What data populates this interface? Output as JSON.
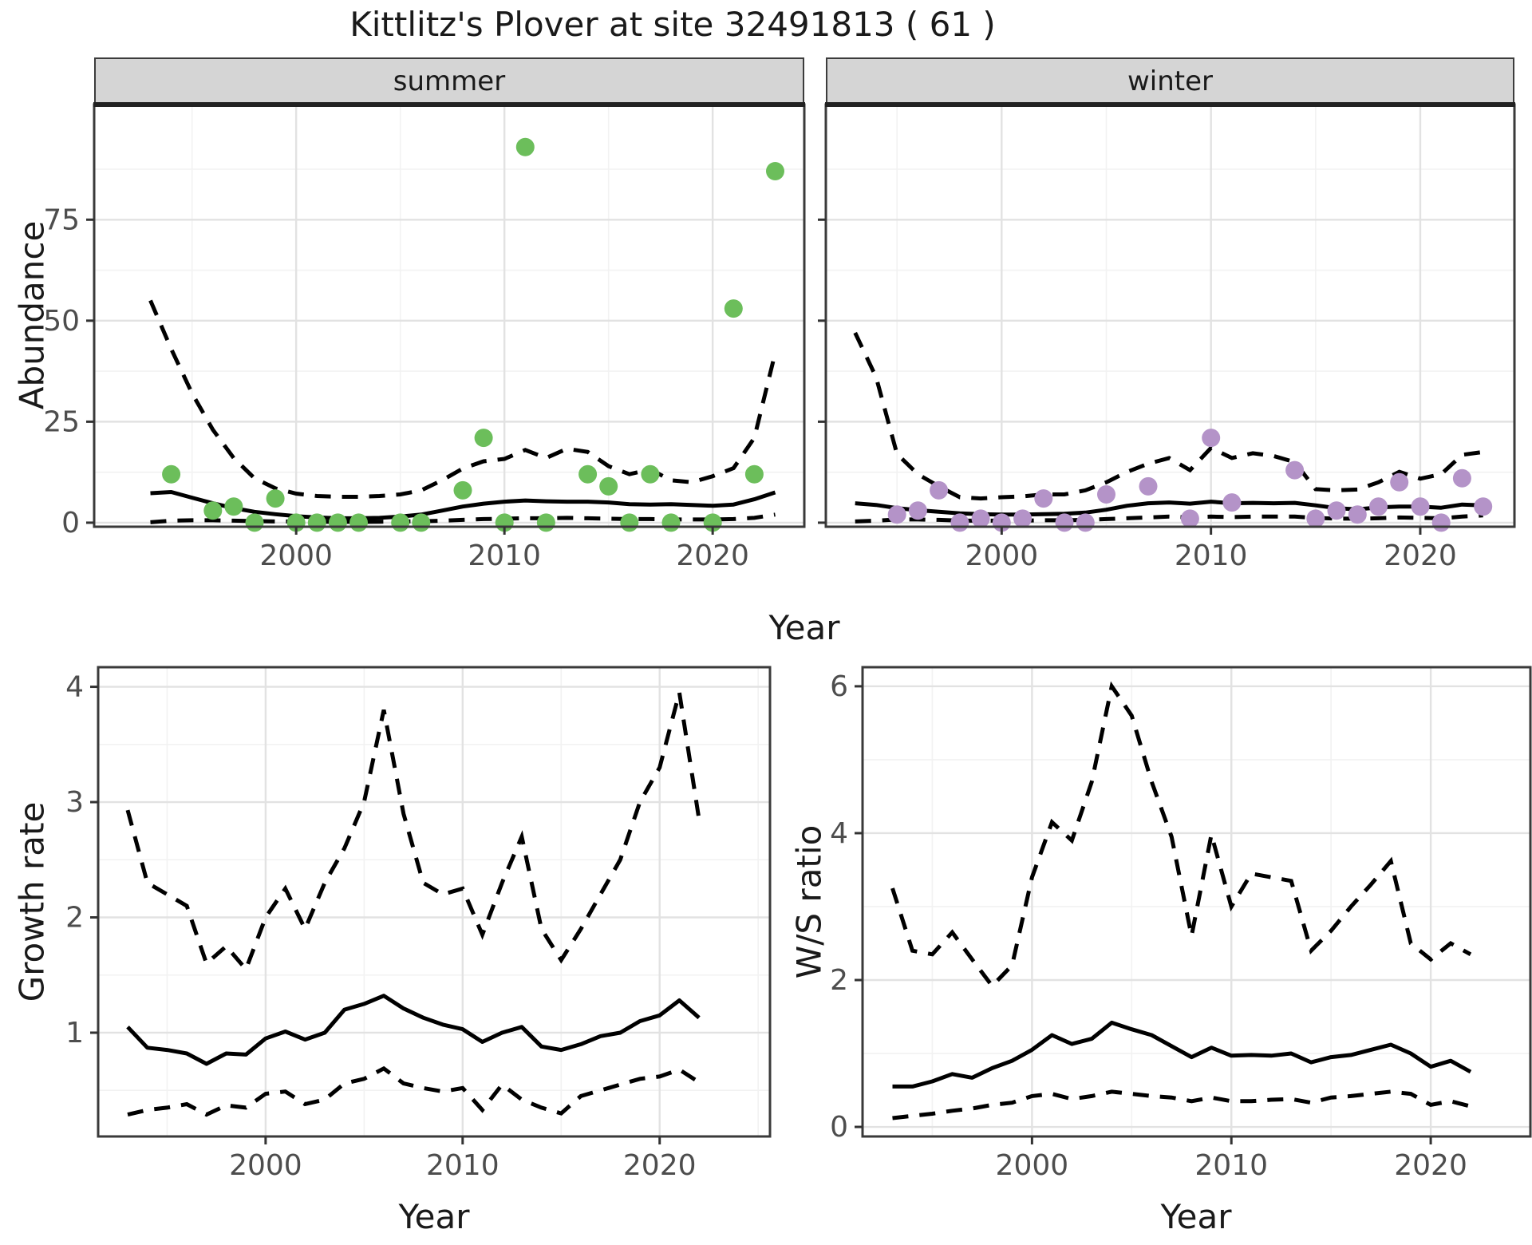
{
  "title": "Kittlitz's Plover at site 32491813 ( 61 )",
  "colors": {
    "summer_point": "#6CBE5B",
    "winter_point": "#B493C8",
    "line": "#000000",
    "strip_bg": "#d5d5d5",
    "grid_major": "#e2e2e2",
    "grid_minor": "#f2f2f2",
    "axis_text": "#4d4d4d",
    "panel_border": "#3a3a3a"
  },
  "facets": {
    "summer_label": "summer",
    "winter_label": "winter"
  },
  "axis_titles": {
    "abundance": "Abundance",
    "top_x": "Year",
    "growth": "Growth rate",
    "growth_x": "Year",
    "ws": "W/S ratio",
    "ws_x": "Year"
  },
  "chart_data": [
    {
      "id": "summer",
      "type": "scatter",
      "facet_label": "summer",
      "x_range": [
        1990.3,
        2024.4
      ],
      "y_range": [
        -1.0,
        103.5
      ],
      "x_ticks": [
        2000,
        2010,
        2020
      ],
      "x_minor": [
        1995,
        2005,
        2015
      ],
      "y_ticks": [
        0,
        25,
        50,
        75
      ],
      "y_minor": [
        12.5,
        37.5,
        62.5,
        87.5
      ],
      "years": [
        1993,
        1994,
        1995,
        1996,
        1997,
        1998,
        1999,
        2000,
        2001,
        2002,
        2003,
        2004,
        2005,
        2006,
        2007,
        2008,
        2009,
        2010,
        2011,
        2012,
        2013,
        2014,
        2015,
        2016,
        2017,
        2018,
        2019,
        2020,
        2021,
        2022,
        2023
      ],
      "fit": [
        7.3,
        7.6,
        6.2,
        4.8,
        3.6,
        2.7,
        2.1,
        1.6,
        1.3,
        1.1,
        1.1,
        1.2,
        1.5,
        2.0,
        3.0,
        4.0,
        4.7,
        5.2,
        5.5,
        5.3,
        5.2,
        5.2,
        5.0,
        4.6,
        4.5,
        4.6,
        4.4,
        4.2,
        4.5,
        5.8,
        7.5
      ],
      "lower": [
        0.1,
        0.5,
        0.6,
        0.6,
        0.5,
        0.4,
        0.3,
        0.3,
        0.25,
        0.2,
        0.2,
        0.25,
        0.3,
        0.35,
        0.5,
        0.7,
        0.9,
        1.0,
        1.1,
        1.1,
        1.2,
        1.1,
        1.0,
        0.9,
        0.9,
        0.8,
        0.8,
        0.8,
        0.9,
        1.2,
        2.0
      ],
      "upper": [
        55,
        43,
        32,
        23,
        16,
        11,
        8.5,
        7.2,
        6.6,
        6.4,
        6.4,
        6.6,
        7.0,
        8.0,
        10.5,
        13.4,
        15.2,
        15.8,
        18.0,
        16.0,
        18.3,
        17.5,
        14.0,
        12.0,
        13.2,
        10.5,
        10.0,
        11.5,
        13.5,
        21,
        42
      ],
      "points": [
        [
          1994,
          12
        ],
        [
          1996,
          3
        ],
        [
          1997,
          4
        ],
        [
          1998,
          0
        ],
        [
          1999,
          6
        ],
        [
          2000,
          0
        ],
        [
          2001,
          0
        ],
        [
          2002,
          0
        ],
        [
          2003,
          0
        ],
        [
          2005,
          0
        ],
        [
          2006,
          0
        ],
        [
          2008,
          8
        ],
        [
          2009,
          21
        ],
        [
          2010,
          0
        ],
        [
          2011,
          93
        ],
        [
          2012,
          0
        ],
        [
          2014,
          12
        ],
        [
          2015,
          9
        ],
        [
          2016,
          0
        ],
        [
          2017,
          12
        ],
        [
          2018,
          0
        ],
        [
          2020,
          0
        ],
        [
          2021,
          53
        ],
        [
          2022,
          12
        ],
        [
          2023,
          87
        ]
      ],
      "point_color": "#6CBE5B"
    },
    {
      "id": "winter",
      "type": "scatter",
      "facet_label": "winter",
      "x_range": [
        1991.6,
        2024.5
      ],
      "y_range": [
        -1.0,
        103.5
      ],
      "x_ticks": [
        2000,
        2010,
        2020
      ],
      "x_minor": [
        1995,
        2005,
        2015
      ],
      "y_ticks": [
        0,
        25,
        50,
        75
      ],
      "y_minor": [
        12.5,
        37.5,
        62.5,
        87.5
      ],
      "years": [
        1993,
        1994,
        1995,
        1996,
        1997,
        1998,
        1999,
        2000,
        2001,
        2002,
        2003,
        2004,
        2005,
        2006,
        2007,
        2008,
        2009,
        2010,
        2011,
        2012,
        2013,
        2014,
        2015,
        2016,
        2017,
        2018,
        2019,
        2020,
        2021,
        2022,
        2023
      ],
      "fit": [
        4.8,
        4.4,
        3.6,
        3.1,
        2.7,
        2.3,
        2.1,
        2.0,
        2.0,
        2.1,
        2.2,
        2.5,
        3.2,
        4.2,
        4.8,
        5.0,
        4.7,
        5.2,
        4.8,
        4.9,
        4.8,
        4.9,
        4.3,
        3.6,
        3.3,
        3.8,
        4.0,
        4.0,
        3.7,
        4.5,
        4.3
      ],
      "lower": [
        0.3,
        0.5,
        0.8,
        0.8,
        0.7,
        0.5,
        0.5,
        0.5,
        0.5,
        0.6,
        0.6,
        0.7,
        0.9,
        1.1,
        1.3,
        1.5,
        1.3,
        1.5,
        1.4,
        1.5,
        1.5,
        1.5,
        1.2,
        1.0,
        1.0,
        1.1,
        1.3,
        1.2,
        1.1,
        1.5,
        1.8
      ],
      "upper": [
        47,
        36,
        17,
        12,
        9,
        6.3,
        6.0,
        6.3,
        6.5,
        7.0,
        7.0,
        8.0,
        10.0,
        12.6,
        14.6,
        16.0,
        13.0,
        18.5,
        16.0,
        17.2,
        16.5,
        15.0,
        8.3,
        8.0,
        8.2,
        10.0,
        12.6,
        10.9,
        12.0,
        16.8,
        17.5
      ],
      "points": [
        [
          1995,
          2
        ],
        [
          1996,
          3
        ],
        [
          1997,
          8
        ],
        [
          1998,
          0
        ],
        [
          1999,
          1
        ],
        [
          2000,
          0
        ],
        [
          2001,
          1
        ],
        [
          2002,
          6
        ],
        [
          2003,
          0
        ],
        [
          2004,
          0
        ],
        [
          2005,
          7
        ],
        [
          2007,
          9
        ],
        [
          2009,
          1
        ],
        [
          2010,
          21
        ],
        [
          2011,
          5
        ],
        [
          2014,
          13
        ],
        [
          2015,
          1
        ],
        [
          2016,
          3
        ],
        [
          2017,
          2
        ],
        [
          2018,
          4
        ],
        [
          2019,
          10
        ],
        [
          2020,
          4
        ],
        [
          2021,
          0
        ],
        [
          2022,
          11
        ],
        [
          2023,
          4
        ]
      ],
      "point_color": "#B493C8"
    },
    {
      "id": "growth",
      "type": "line",
      "x_range": [
        1991.5,
        2025.6
      ],
      "y_range": [
        0.1,
        4.17
      ],
      "x_ticks": [
        2000,
        2010,
        2020
      ],
      "x_minor": [
        1995,
        2005,
        2015,
        2025
      ],
      "y_ticks": [
        1,
        2,
        3,
        4
      ],
      "y_minor": [
        0.5,
        1.5,
        2.5,
        3.5
      ],
      "years": [
        1993,
        1994,
        1995,
        1996,
        1997,
        1998,
        1999,
        2000,
        2001,
        2002,
        2003,
        2004,
        2005,
        2006,
        2007,
        2008,
        2009,
        2010,
        2011,
        2012,
        2013,
        2014,
        2015,
        2016,
        2017,
        2018,
        2019,
        2020,
        2021,
        2022
      ],
      "fit": [
        1.05,
        0.87,
        0.85,
        0.82,
        0.73,
        0.82,
        0.81,
        0.95,
        1.01,
        0.94,
        1.0,
        1.2,
        1.25,
        1.32,
        1.21,
        1.13,
        1.07,
        1.03,
        0.92,
        1.0,
        1.05,
        0.88,
        0.85,
        0.9,
        0.97,
        1.0,
        1.1,
        1.15,
        1.28,
        1.13
      ],
      "lower": [
        0.29,
        0.33,
        0.35,
        0.38,
        0.29,
        0.37,
        0.35,
        0.47,
        0.49,
        0.38,
        0.42,
        0.56,
        0.6,
        0.69,
        0.56,
        0.52,
        0.49,
        0.52,
        0.33,
        0.55,
        0.42,
        0.35,
        0.3,
        0.45,
        0.5,
        0.55,
        0.6,
        0.62,
        0.68,
        0.57
      ],
      "upper": [
        2.93,
        2.3,
        2.2,
        2.1,
        1.6,
        1.75,
        1.55,
        2.0,
        2.25,
        1.9,
        2.3,
        2.6,
        3.0,
        3.8,
        2.9,
        2.3,
        2.2,
        2.25,
        1.85,
        2.3,
        2.7,
        1.9,
        1.63,
        1.9,
        2.2,
        2.5,
        3.0,
        3.3,
        3.95,
        2.85
      ],
      "points": []
    },
    {
      "id": "ws",
      "type": "line",
      "x_range": [
        1991.5,
        2025.0
      ],
      "y_range": [
        -0.13,
        6.26
      ],
      "x_ticks": [
        2000,
        2010,
        2020
      ],
      "x_minor": [
        1995,
        2005,
        2015
      ],
      "y_ticks": [
        0,
        2,
        4,
        6
      ],
      "y_minor": [
        1,
        3,
        5
      ],
      "years": [
        1993,
        1994,
        1995,
        1996,
        1997,
        1998,
        1999,
        2000,
        2001,
        2002,
        2003,
        2004,
        2005,
        2006,
        2007,
        2008,
        2009,
        2010,
        2011,
        2012,
        2013,
        2014,
        2015,
        2016,
        2017,
        2018,
        2019,
        2020,
        2021,
        2022
      ],
      "fit": [
        0.55,
        0.55,
        0.62,
        0.72,
        0.67,
        0.8,
        0.9,
        1.05,
        1.25,
        1.13,
        1.2,
        1.42,
        1.33,
        1.25,
        1.1,
        0.95,
        1.08,
        0.97,
        0.98,
        0.97,
        1.0,
        0.88,
        0.95,
        0.98,
        1.05,
        1.12,
        1.0,
        0.82,
        0.9,
        0.75
      ],
      "lower": [
        0.12,
        0.15,
        0.18,
        0.22,
        0.25,
        0.3,
        0.33,
        0.42,
        0.45,
        0.38,
        0.42,
        0.48,
        0.45,
        0.42,
        0.4,
        0.35,
        0.4,
        0.35,
        0.35,
        0.37,
        0.38,
        0.33,
        0.4,
        0.42,
        0.45,
        0.48,
        0.45,
        0.3,
        0.35,
        0.28
      ],
      "upper": [
        3.25,
        2.4,
        2.35,
        2.65,
        2.28,
        1.92,
        2.2,
        3.4,
        4.15,
        3.9,
        4.7,
        6.0,
        5.6,
        4.7,
        3.95,
        2.6,
        3.98,
        3.0,
        3.45,
        3.4,
        3.35,
        2.4,
        2.67,
        3.0,
        3.3,
        3.62,
        2.5,
        2.28,
        2.5,
        2.35
      ],
      "points": []
    }
  ]
}
